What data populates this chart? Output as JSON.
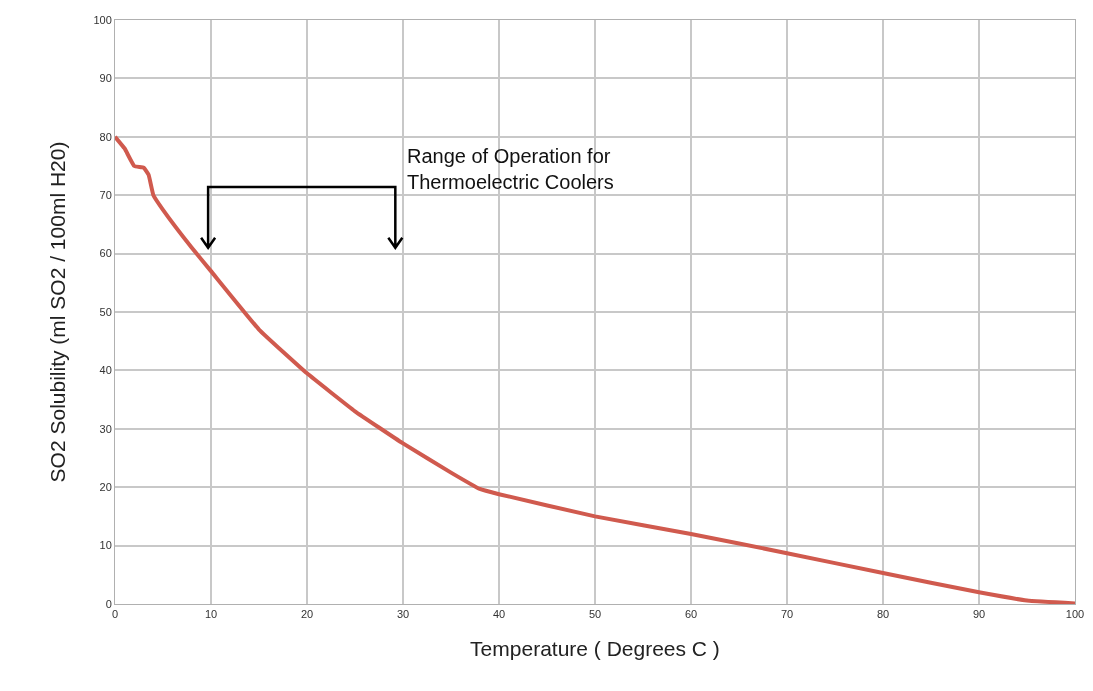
{
  "chart_data": {
    "type": "line",
    "xlabel": "Temperature ( Degrees C )",
    "ylabel": "SO2 Solubility (ml SO2 / 100ml H20)",
    "x": [
      0,
      1,
      2,
      3,
      3.5,
      4,
      5,
      8,
      10,
      15,
      20,
      25,
      30,
      35,
      38,
      40,
      50,
      60,
      70,
      80,
      90,
      95,
      100
    ],
    "series": [
      {
        "color": "#d05a4e",
        "values": [
          80,
          78,
          75,
          74.7,
          73.5,
          70,
          67.5,
          61,
          57,
          47,
          39.5,
          33,
          27.5,
          22.5,
          19.7,
          18.8,
          15,
          12,
          8.7,
          5.3,
          2,
          0.6,
          0.1
        ]
      }
    ],
    "xlim": [
      0,
      100
    ],
    "xticks": [
      0,
      10,
      20,
      30,
      40,
      50,
      60,
      70,
      80,
      90,
      100
    ],
    "ylim": [
      0,
      100
    ],
    "yticks": [
      0,
      10,
      20,
      30,
      40,
      50,
      60,
      70,
      80,
      90,
      100
    ],
    "grid": true,
    "marker": "none",
    "line_style": "solid",
    "annotations": [
      "Range of Operation for\nThermoelectric Coolers"
    ]
  }
}
